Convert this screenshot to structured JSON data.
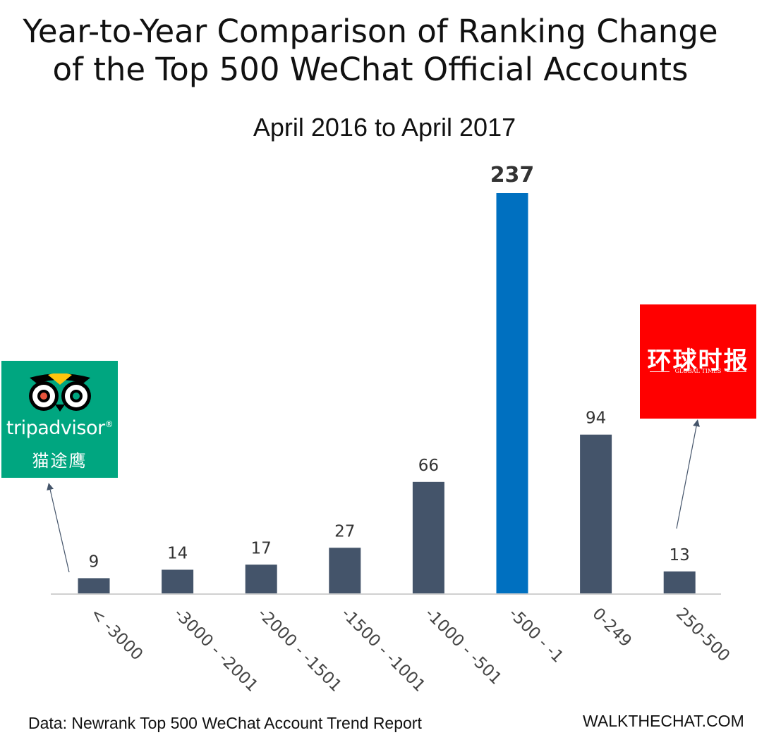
{
  "title_line1": "Year-to-Year Comparison of Ranking Change",
  "title_line2": "of the Top 500 WeChat Official Accounts",
  "subtitle": "April 2016 to April 2017",
  "source": "Data: Newrank Top 500 WeChat Account Trend Report",
  "brand": "WALKTHECHAT.COM",
  "logos": {
    "tripadvisor": {
      "word": "tripadvisor",
      "registered": "®",
      "chinese": "猫途鹰",
      "color": "#00a680"
    },
    "global_times": {
      "chinese": "环球时报",
      "english": "GLOBAL TIMES",
      "color": "#ff0000"
    }
  },
  "chart_data": {
    "type": "bar",
    "title": "Year-to-Year Comparison of Ranking Change of the Top 500 WeChat Official Accounts",
    "subtitle": "April 2016 to April 2017",
    "categories": [
      "< -3000",
      "-3000 - -2001",
      "-2000 - -1501",
      "-1500 - -1001",
      "-1000 - -501",
      "-500 - -1",
      "0-249",
      "250-500"
    ],
    "values": [
      9,
      14,
      17,
      27,
      66,
      237,
      94,
      13
    ],
    "highlight_index": 5,
    "bar_color": "#44546a",
    "highlight_color": "#0070c0",
    "ylim": [
      0,
      237
    ],
    "grid": false,
    "xlabel": "",
    "ylabel": ""
  }
}
